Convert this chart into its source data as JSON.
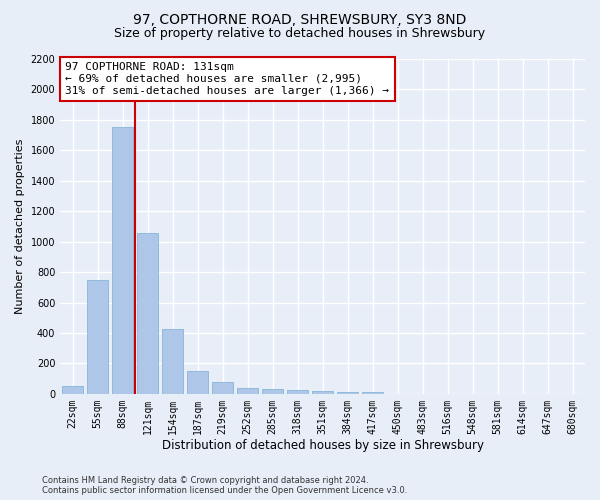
{
  "title": "97, COPTHORNE ROAD, SHREWSBURY, SY3 8ND",
  "subtitle": "Size of property relative to detached houses in Shrewsbury",
  "xlabel": "Distribution of detached houses by size in Shrewsbury",
  "ylabel": "Number of detached properties",
  "bar_labels": [
    "22sqm",
    "55sqm",
    "88sqm",
    "121sqm",
    "154sqm",
    "187sqm",
    "219sqm",
    "252sqm",
    "285sqm",
    "318sqm",
    "351sqm",
    "384sqm",
    "417sqm",
    "450sqm",
    "483sqm",
    "516sqm",
    "548sqm",
    "581sqm",
    "614sqm",
    "647sqm",
    "680sqm"
  ],
  "bar_values": [
    50,
    750,
    1750,
    1060,
    425,
    150,
    75,
    40,
    35,
    25,
    20,
    15,
    15,
    0,
    0,
    0,
    0,
    0,
    0,
    0,
    0
  ],
  "bar_color": "#aec6e8",
  "bar_edge_color": "#7aadd4",
  "ylim": [
    0,
    2200
  ],
  "yticks": [
    0,
    200,
    400,
    600,
    800,
    1000,
    1200,
    1400,
    1600,
    1800,
    2000,
    2200
  ],
  "property_line_color": "#cc0000",
  "annotation_line1": "97 COPTHORNE ROAD: 131sqm",
  "annotation_line2": "← 69% of detached houses are smaller (2,995)",
  "annotation_line3": "31% of semi-detached houses are larger (1,366) →",
  "annotation_box_color": "#ffffff",
  "annotation_box_edge_color": "#cc0000",
  "footer_text": "Contains HM Land Registry data © Crown copyright and database right 2024.\nContains public sector information licensed under the Open Government Licence v3.0.",
  "background_color": "#e8eef8",
  "plot_background_color": "#e8eef8",
  "grid_color": "#ffffff",
  "title_fontsize": 10,
  "subtitle_fontsize": 9,
  "tick_fontsize": 7,
  "ylabel_fontsize": 8,
  "xlabel_fontsize": 8.5,
  "annotation_fontsize": 8,
  "footer_fontsize": 6
}
